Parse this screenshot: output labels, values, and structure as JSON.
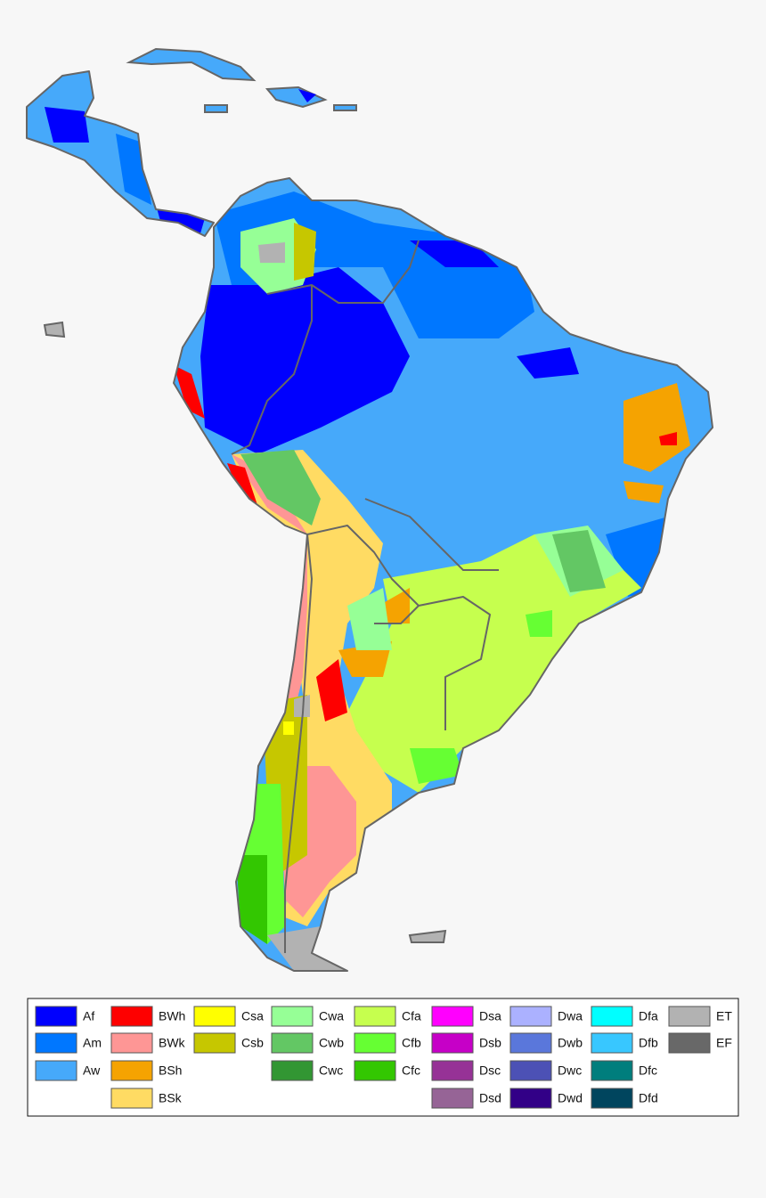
{
  "legend": {
    "columns": [
      [
        {
          "label": "Af",
          "color": "#0000fe"
        },
        {
          "label": "Am",
          "color": "#0077ff"
        },
        {
          "label": "Aw",
          "color": "#46a9fa"
        }
      ],
      [
        {
          "label": "BWh",
          "color": "#fe0000"
        },
        {
          "label": "BWk",
          "color": "#fe9695"
        },
        {
          "label": "BSh",
          "color": "#f5a301"
        },
        {
          "label": "BSk",
          "color": "#ffdb63"
        }
      ],
      [
        {
          "label": "Csa",
          "color": "#ffff00"
        },
        {
          "label": "Csb",
          "color": "#c6c700"
        }
      ],
      [
        {
          "label": "Cwa",
          "color": "#96ff96"
        },
        {
          "label": "Cwb",
          "color": "#63c764"
        },
        {
          "label": "Cwc",
          "color": "#329633"
        }
      ],
      [
        {
          "label": "Cfa",
          "color": "#c6ff4e"
        },
        {
          "label": "Cfb",
          "color": "#66ff33"
        },
        {
          "label": "Cfc",
          "color": "#33c701"
        }
      ],
      [
        {
          "label": "Dsa",
          "color": "#ff00fe"
        },
        {
          "label": "Dsb",
          "color": "#c600c7"
        },
        {
          "label": "Dsc",
          "color": "#963296"
        },
        {
          "label": "Dsd",
          "color": "#966496"
        }
      ],
      [
        {
          "label": "Dwa",
          "color": "#abb1ff"
        },
        {
          "label": "Dwb",
          "color": "#5a77db"
        },
        {
          "label": "Dwc",
          "color": "#4c51b5"
        },
        {
          "label": "Dwd",
          "color": "#320087"
        }
      ],
      [
        {
          "label": "Dfa",
          "color": "#00ffff"
        },
        {
          "label": "Dfb",
          "color": "#38c7ff"
        },
        {
          "label": "Dfc",
          "color": "#007e7d"
        },
        {
          "label": "Dfd",
          "color": "#00455e"
        }
      ],
      [
        {
          "label": "ET",
          "color": "#b2b2b2"
        },
        {
          "label": "EF",
          "color": "#686868"
        }
      ]
    ]
  }
}
